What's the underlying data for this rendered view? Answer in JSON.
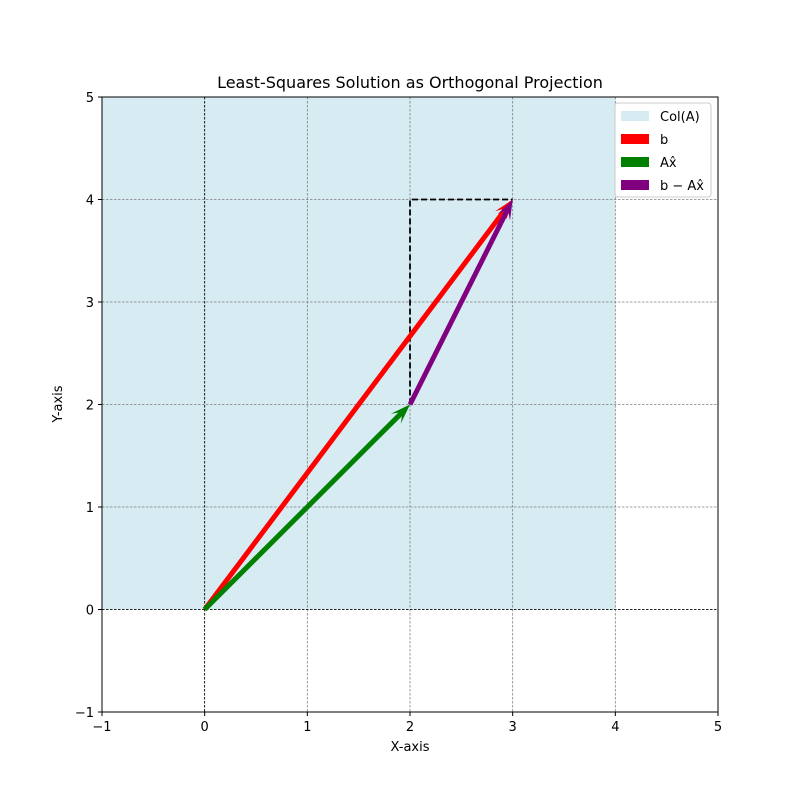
{
  "chart_data": {
    "type": "vector",
    "title": "Least-Squares Solution as Orthogonal Projection",
    "xlabel": "X-axis",
    "ylabel": "Y-axis",
    "xlim": [
      -1,
      5
    ],
    "ylim": [
      -1,
      5
    ],
    "xticks": [
      -1,
      0,
      1,
      2,
      3,
      4,
      5
    ],
    "yticks": [
      -1,
      0,
      1,
      2,
      3,
      4,
      5
    ],
    "tick_labels_x": [
      "−1",
      "0",
      "1",
      "2",
      "3",
      "4",
      "5"
    ],
    "tick_labels_y": [
      "−1",
      "0",
      "1",
      "2",
      "3",
      "4",
      "5"
    ],
    "grid": true,
    "legend_position": "top-right",
    "region": {
      "name": "Col(A)",
      "x": [
        -1,
        4
      ],
      "y": [
        0,
        5
      ],
      "color": "#add8e6"
    },
    "vectors": [
      {
        "name": "b",
        "from": [
          0,
          0
        ],
        "to": [
          3,
          4
        ],
        "color": "#ff0000"
      },
      {
        "name": "Ax̂",
        "from": [
          0,
          0
        ],
        "to": [
          2,
          2
        ],
        "color": "#008000"
      },
      {
        "name": "b − Ax̂",
        "from": [
          2,
          2
        ],
        "to": [
          3,
          4
        ],
        "color": "#800080"
      }
    ],
    "dashed_lines": [
      {
        "points": [
          [
            2,
            2
          ],
          [
            2,
            4
          ],
          [
            3,
            4
          ]
        ],
        "color": "#000000"
      }
    ],
    "legend": [
      {
        "label": "Col(A)",
        "color": "#add8e6"
      },
      {
        "label": "b",
        "color": "#ff0000"
      },
      {
        "label": "Ax̂",
        "color": "#008000"
      },
      {
        "label": "b − Ax̂",
        "color": "#800080"
      }
    ]
  }
}
